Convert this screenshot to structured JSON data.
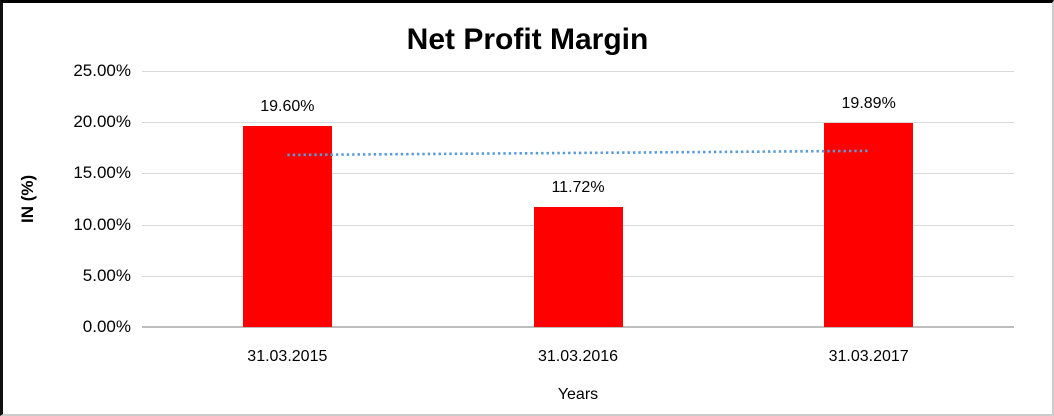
{
  "chart_data": {
    "type": "bar",
    "title": "Net Profit Margin",
    "xlabel": "Years",
    "ylabel": "IN (%)",
    "categories": [
      "31.03.2015",
      "31.03.2016",
      "31.03.2017"
    ],
    "values": [
      19.6,
      11.72,
      19.89
    ],
    "data_labels": [
      "19.60%",
      "11.72%",
      "19.89%"
    ],
    "yticks": [
      "25.00%",
      "20.00%",
      "15.00%",
      "10.00%",
      "5.00%",
      "0.00%"
    ],
    "ylim": [
      0,
      25
    ],
    "grid": true,
    "legend": "none",
    "bar_color": "#FF0000",
    "gridline_color": "#D9D9D9",
    "axis_line_color": "#BDBDBD",
    "text_color": "#000000",
    "trendline": {
      "type": "linear",
      "style": "dotted",
      "color": "#5B9BD5",
      "start_value": 16.8,
      "end_value": 17.2
    }
  },
  "frame": {
    "background": "#FFFFFF",
    "border_top_left_color": "#000000",
    "border_bottom_right_color": "#CCCCCC"
  }
}
